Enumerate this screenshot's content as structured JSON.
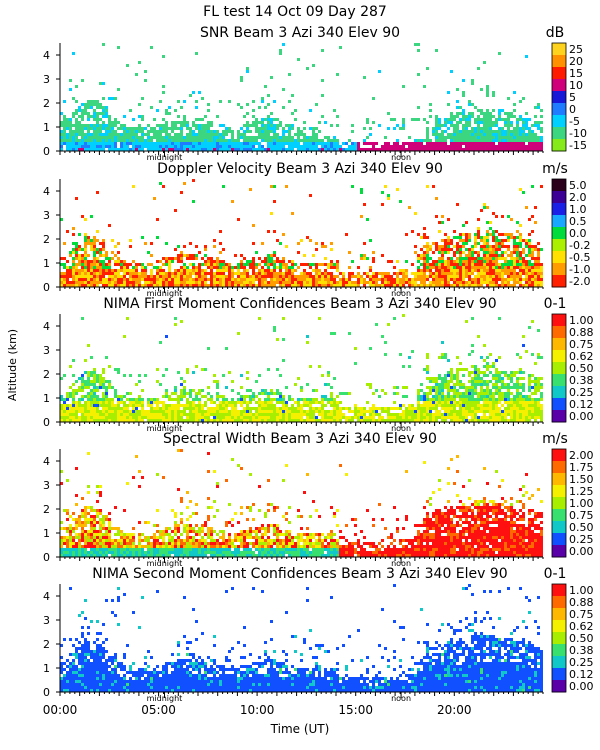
{
  "figure": {
    "title": "FL test  14 Oct 09 Day 287",
    "ylabel": "Altitude (km)",
    "xlabel": "Time (UT)",
    "x_ticks": [
      "00:00",
      "05:00",
      "10:00",
      "15:00",
      "20:00"
    ],
    "x_tick_hours": [
      0,
      5,
      10,
      15,
      20
    ],
    "midnight_label": "midnight",
    "noon_label": "noon",
    "midnight_hour": 5.3,
    "noon_hour": 17.3
  },
  "chart_data": [
    {
      "type": "heatmap",
      "title": "SNR Beam 3 Azi 340 Elev 90",
      "unit": "dB",
      "x_range_hours": [
        0,
        24.5
      ],
      "ylim": [
        0,
        4.5
      ],
      "y_ticks": [
        0,
        1,
        2,
        3,
        4
      ],
      "colorbar": {
        "labels": [
          "25",
          "20",
          "15",
          "10",
          "5",
          "0",
          "-5",
          "-10",
          "-15"
        ],
        "colors": [
          "#ffd21e",
          "#ff9000",
          "#ff1a00",
          "#d0007a",
          "#1818d8",
          "#1f7cff",
          "#00d0ff",
          "#3dd680",
          "#86ea1a"
        ]
      }
    },
    {
      "type": "heatmap",
      "title": "Doppler Velocity Beam 3 Azi 340 Elev 90",
      "unit": "m/s",
      "x_range_hours": [
        0,
        24.5
      ],
      "ylim": [
        0,
        4.5
      ],
      "y_ticks": [
        0,
        1,
        2,
        3,
        4
      ],
      "colorbar": {
        "labels": [
          "5.0",
          "2.0",
          "1.0",
          "0.5",
          "0.0",
          "-0.2",
          "-0.5",
          "-1.0",
          "-2.0"
        ],
        "colors": [
          "#2a001a",
          "#3c0096",
          "#1a20e6",
          "#18a8ff",
          "#00dc3c",
          "#aaf000",
          "#ffe000",
          "#ff9c00",
          "#ff2000"
        ]
      }
    },
    {
      "type": "heatmap",
      "title": "NIMA First Moment Confidences Beam 3 Azi 340 Elev 90",
      "unit": "0-1",
      "x_range_hours": [
        0,
        24.5
      ],
      "ylim": [
        0,
        4.5
      ],
      "y_ticks": [
        0,
        1,
        2,
        3,
        4
      ],
      "colorbar": {
        "labels": [
          "1.00",
          "0.88",
          "0.75",
          "0.62",
          "0.50",
          "0.38",
          "0.25",
          "0.12",
          "0.00"
        ],
        "colors": [
          "#ff1010",
          "#ff6a00",
          "#ffb800",
          "#f4f000",
          "#a8ee00",
          "#38e070",
          "#10c8c8",
          "#1050ff",
          "#5a00a8"
        ]
      }
    },
    {
      "type": "heatmap",
      "title": "Spectral Width Beam 3 Azi 340 Elev 90",
      "unit": "m/s",
      "x_range_hours": [
        0,
        24.5
      ],
      "ylim": [
        0,
        4.5
      ],
      "y_ticks": [
        0,
        1,
        2,
        3,
        4
      ],
      "colorbar": {
        "labels": [
          "2.00",
          "1.75",
          "1.50",
          "1.25",
          "1.00",
          "0.75",
          "0.50",
          "0.25",
          "0.00"
        ],
        "colors": [
          "#ff1010",
          "#ff6a00",
          "#ffb800",
          "#f4f000",
          "#a8ee00",
          "#38e070",
          "#10c8c8",
          "#1050ff",
          "#5a00a8"
        ]
      }
    },
    {
      "type": "heatmap",
      "title": "NIMA Second Moment Confidences Beam 3 Azi 340 Elev 90",
      "unit": "0-1",
      "x_range_hours": [
        0,
        24.5
      ],
      "ylim": [
        0,
        4.5
      ],
      "y_ticks": [
        0,
        1,
        2,
        3,
        4
      ],
      "colorbar": {
        "labels": [
          "1.00",
          "0.88",
          "0.75",
          "0.62",
          "0.50",
          "0.38",
          "0.25",
          "0.12",
          "0.00"
        ],
        "colors": [
          "#ff1010",
          "#ff6a00",
          "#ffb800",
          "#f4f000",
          "#a8ee00",
          "#38e070",
          "#10c8c8",
          "#1050ff",
          "#5a00a8"
        ]
      }
    }
  ]
}
